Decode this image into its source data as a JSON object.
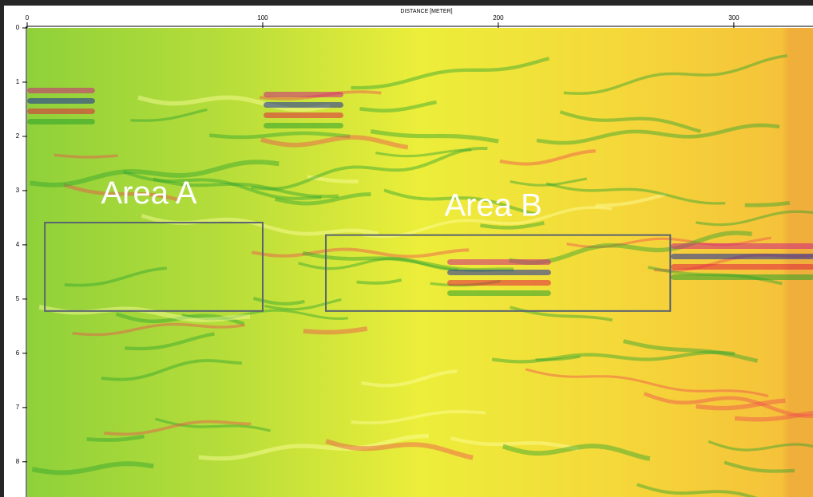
{
  "chart_data": {
    "type": "radargram",
    "x_label": "DISTANCE [METER]",
    "xlim": [
      0,
      333.6
    ],
    "xticks": [
      0,
      100,
      200,
      300
    ],
    "ylim": [
      0,
      8.65
    ],
    "yticks": [
      0,
      1,
      2,
      3,
      4,
      5,
      6,
      7,
      8
    ],
    "annotations": [
      {
        "text": "Area A",
        "x": [
          7.5,
          100
        ],
        "y": [
          3.59,
          5.22
        ]
      },
      {
        "text": "Area B",
        "x": [
          126.8,
          273
        ],
        "y": [
          3.82,
          5.22
        ]
      }
    ]
  }
}
